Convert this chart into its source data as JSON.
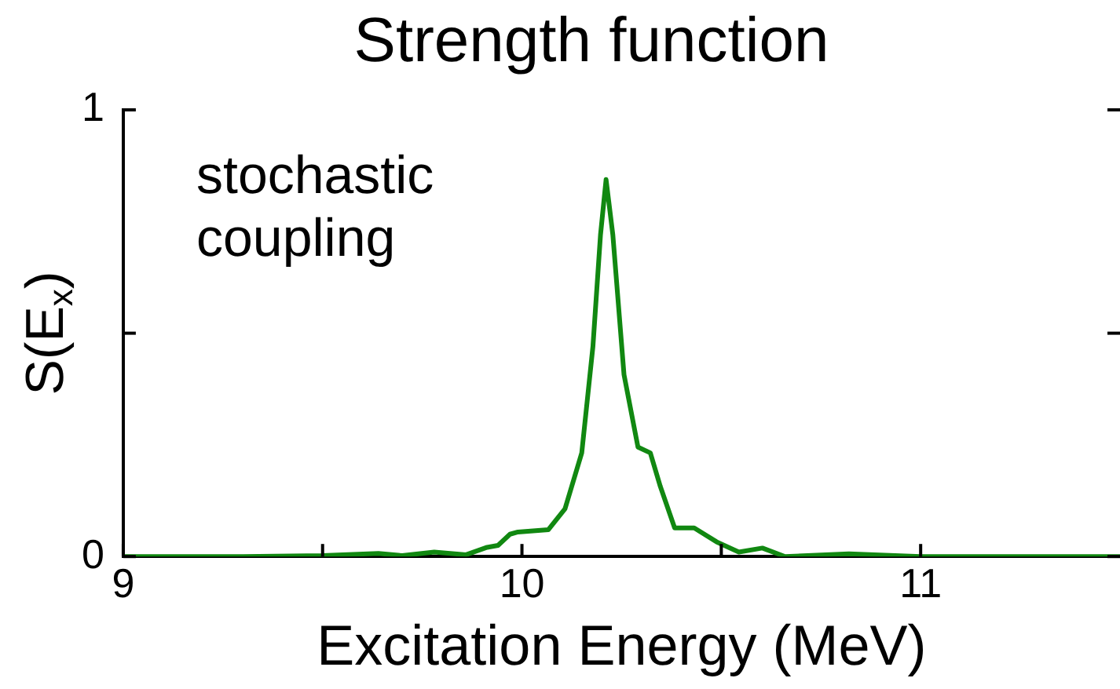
{
  "chart_data": {
    "type": "line",
    "title": "Strength function",
    "xlabel": "Excitation Energy (MeV)",
    "ylabel": "S(E$_{x}$)",
    "annotations": [
      "stochastic coupling"
    ],
    "xlim": [
      9,
      11.5
    ],
    "xticks": [
      9,
      {
        "value": 9.5,
        "label": null
      },
      10,
      {
        "value": 10.5,
        "label": null
      },
      11
    ],
    "ylim": [
      0,
      1
    ],
    "yticks": [
      0,
      {
        "value": 0.5,
        "label": null
      },
      1
    ],
    "grid": false,
    "legend": false,
    "marker": "none",
    "line_style": "solid",
    "series": [
      {
        "color": "#118811",
        "x": [
          9,
          9.3,
          9.5,
          9.64,
          9.7,
          9.78,
          9.86,
          9.91,
          9.94,
          9.97,
          9.99,
          10.066,
          10.108,
          10.15,
          10.178,
          10.197,
          10.211,
          10.228,
          10.256,
          10.291,
          10.322,
          10.347,
          10.383,
          10.432,
          10.488,
          10.544,
          10.603,
          10.66,
          10.82,
          11.0,
          11.2,
          11.5
        ],
        "values": [
          0,
          0,
          0.002,
          0.007,
          0.002,
          0.01,
          0.004,
          0.02,
          0.025,
          0.05,
          0.055,
          0.06,
          0.107,
          0.232,
          0.47,
          0.72,
          0.844,
          0.72,
          0.407,
          0.245,
          0.232,
          0.157,
          0.064,
          0.064,
          0.033,
          0.01,
          0.019,
          0,
          0.006,
          0,
          0,
          0
        ]
      }
    ]
  }
}
